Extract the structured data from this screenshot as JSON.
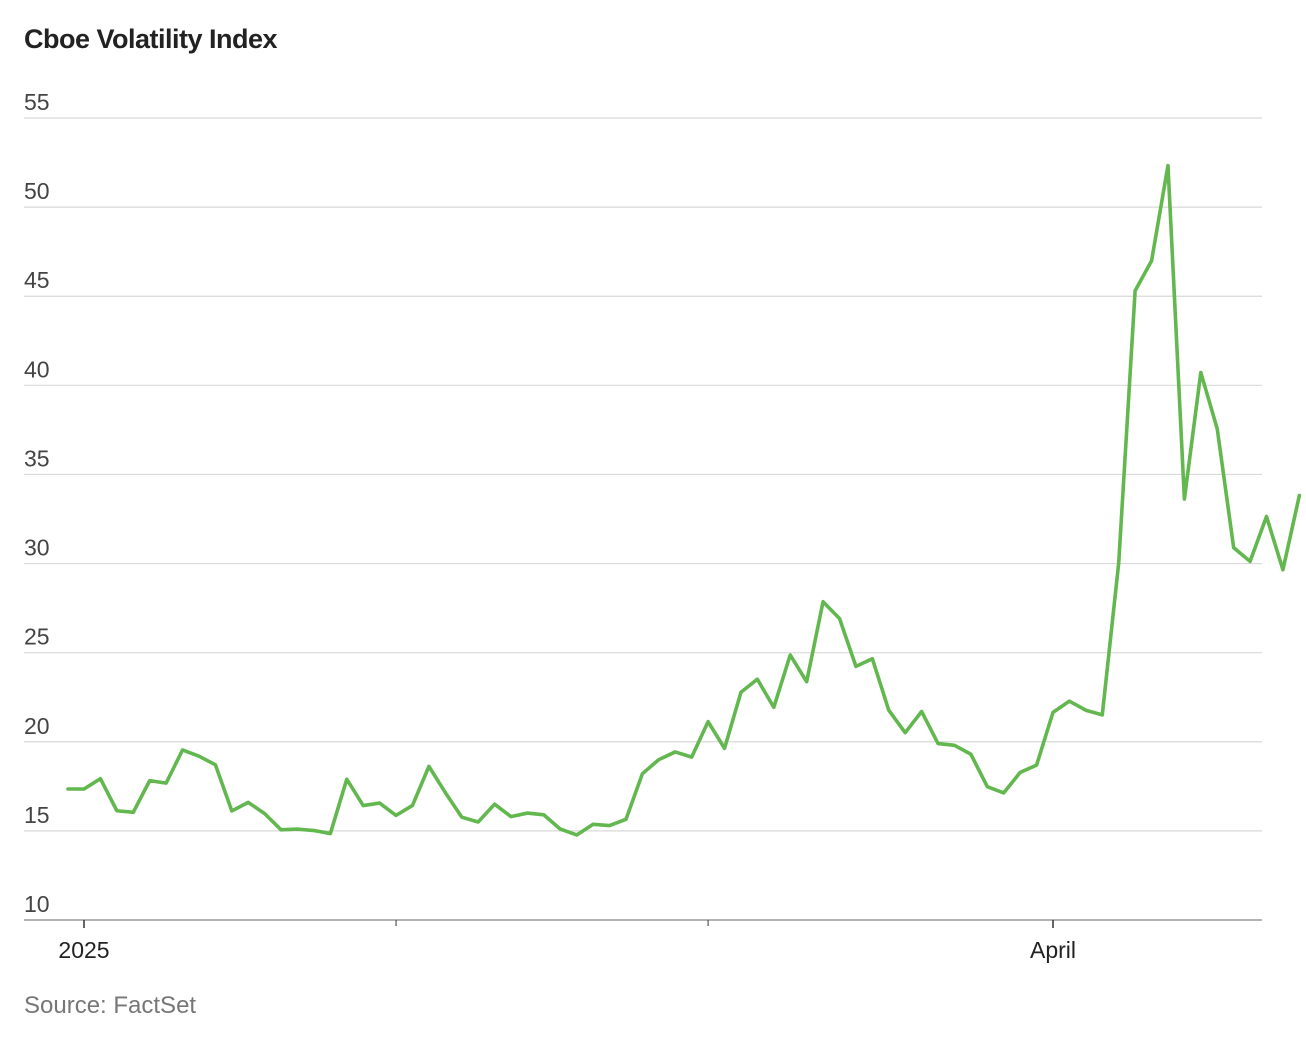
{
  "chart_data": {
    "type": "line",
    "title": "Cboe Volatility Index",
    "source": "Source: FactSet",
    "xlabel": "",
    "ylabel": "",
    "ylim": [
      10,
      55
    ],
    "y_ticks": [
      10,
      15,
      20,
      25,
      30,
      35,
      40,
      45,
      50,
      55
    ],
    "grid": true,
    "x_range": [
      -1,
      72
    ],
    "x_major_ticks": [
      {
        "index": 0,
        "label": "2025"
      },
      {
        "index": 59,
        "label": "April"
      }
    ],
    "x_minor_ticks": [
      19,
      38
    ],
    "series": [
      {
        "name": "Cboe Volatility Index",
        "color": "#62b84f",
        "values": [
          17.35,
          17.93,
          16.13,
          16.04,
          17.82,
          17.68,
          19.54,
          19.19,
          18.71,
          16.12,
          16.6,
          15.97,
          15.06,
          15.1,
          15.02,
          14.85,
          17.9,
          16.42,
          16.56,
          15.87,
          16.43,
          18.62,
          17.15,
          15.77,
          15.5,
          16.5,
          15.8,
          16.0,
          15.9,
          15.1,
          14.77,
          15.37,
          15.3,
          15.65,
          18.21,
          19.0,
          19.43,
          19.14,
          21.13,
          19.63,
          22.78,
          23.51,
          21.93,
          24.87,
          23.37,
          27.86,
          26.92,
          24.23,
          24.66,
          21.77,
          20.51,
          21.7,
          19.9,
          19.8,
          19.3,
          17.48,
          17.13,
          18.28,
          18.69,
          21.65,
          22.28,
          21.77,
          21.51,
          30.02,
          45.31,
          46.98,
          52.33,
          33.62,
          40.72,
          37.56,
          30.89,
          30.12,
          32.64,
          29.65,
          33.82
        ]
      }
    ]
  }
}
